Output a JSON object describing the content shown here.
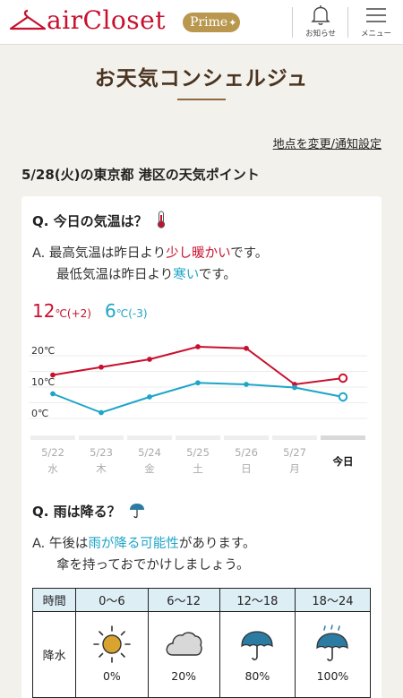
{
  "header": {
    "logo_text": "airCloset",
    "prime_label": "Prime",
    "notice_label": "お知らせ",
    "menu_label": "メニュー"
  },
  "page_title": "お天気コンシェルジュ",
  "change_link": "地点を変更/通知設定",
  "location_title": "5/28(火)の東京都 港区の天気ポイント",
  "temperature": {
    "question": "Q. 今日の気温は？",
    "answer_prefix": "A. ",
    "answer_line1_pre": "最高気温は昨日より",
    "answer_line1_hl": "少し暖かい",
    "answer_line1_post": "です。",
    "answer_line2_pre": "最低気温は昨日より",
    "answer_line2_hl": "寒い",
    "answer_line2_post": "です。",
    "max_value": "12",
    "max_unit": "℃(+2)",
    "min_value": "6",
    "min_unit": "℃(-3)"
  },
  "chart_data": {
    "type": "line",
    "categories": [
      "5/22",
      "5/23",
      "5/24",
      "5/25",
      "5/26",
      "5/27",
      "今日"
    ],
    "weekdays": [
      "水",
      "木",
      "金",
      "土",
      "日",
      "月",
      ""
    ],
    "series": [
      {
        "values": [
          13,
          15.5,
          18,
          22,
          21.5,
          10,
          12
        ],
        "color": "#c8102e"
      },
      {
        "values": [
          7,
          1,
          6,
          10.5,
          10,
          9,
          6
        ],
        "color": "#1ea5c8"
      }
    ],
    "y_ticks": [
      "20℃",
      "10℃",
      "0℃"
    ],
    "ylim": [
      0,
      20
    ],
    "grid": true
  },
  "rain": {
    "question": "Q. 雨は降る？",
    "answer_prefix": "A. ",
    "answer_line1_pre": "午後は",
    "answer_line1_hl": "雨が降る可能性",
    "answer_line1_post": "があります。",
    "answer_line2": "傘を持っておでかけしましょう。",
    "table": {
      "header_label": "時間",
      "row_label": "降水",
      "columns": [
        {
          "time": "0〜6",
          "icon": "sun-icon",
          "value": "0%"
        },
        {
          "time": "6〜12",
          "icon": "cloud-icon",
          "value": "20%"
        },
        {
          "time": "12〜18",
          "icon": "umbrella-icon",
          "value": "80%"
        },
        {
          "time": "18〜24",
          "icon": "umbrella-rain-icon",
          "value": "100%"
        }
      ]
    }
  },
  "colors": {
    "brand": "#c8102e",
    "prime_gold": "#b9974e",
    "warm": "#c8102e",
    "cool": "#1ea5c8",
    "title_brown": "#4a3420"
  }
}
